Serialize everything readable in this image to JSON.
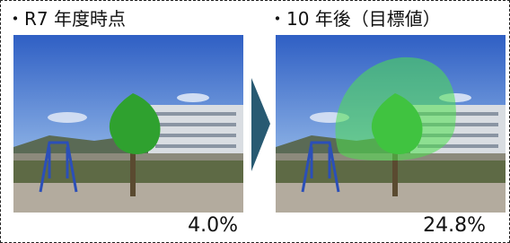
{
  "left": {
    "title": "・R7 年度時点",
    "value": "4.0%"
  },
  "right": {
    "title": "・10 年後（目標値）",
    "value": "24.8%"
  }
}
